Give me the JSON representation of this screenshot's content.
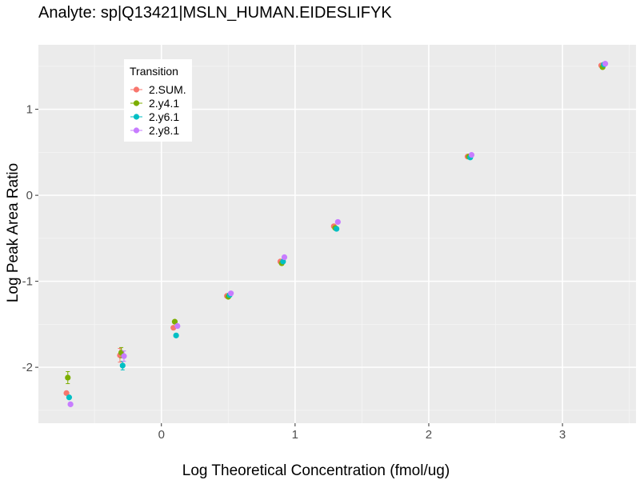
{
  "chart_data": {
    "type": "scatter",
    "title": "Analyte: sp|Q13421|MSLN_HUMAN.EIDESLIFYK",
    "xlabel": "Log Theoretical Concentration (fmol/ug)",
    "ylabel": "Log Peak Area Ratio",
    "xlim": [
      -0.92,
      3.55
    ],
    "ylim": [
      -2.65,
      1.75
    ],
    "x_ticks": [
      0,
      1,
      2,
      3
    ],
    "y_ticks": [
      -2,
      -1,
      0,
      1
    ],
    "x_tick_labels": [
      "0",
      "1",
      "2",
      "3"
    ],
    "y_tick_labels": [
      "-2",
      "-1",
      "0",
      "1"
    ],
    "grid": true,
    "legend": {
      "title": "Transition",
      "position": "top-left"
    },
    "series": [
      {
        "name": "2.SUM.",
        "color": "#F8766D",
        "x": [
          -0.71,
          -0.31,
          0.09,
          0.49,
          0.89,
          1.29,
          2.29,
          3.29
        ],
        "y": [
          -2.3,
          -1.86,
          -1.54,
          -1.17,
          -0.77,
          -0.36,
          0.45,
          1.51
        ],
        "err": [
          0,
          0.08,
          0,
          0,
          0,
          0,
          0,
          0
        ]
      },
      {
        "name": "2.y4.1",
        "color": "#7CAE00",
        "x": [
          -0.7,
          -0.3,
          0.1,
          0.5,
          0.9,
          1.3,
          2.3,
          3.3
        ],
        "y": [
          -2.12,
          -1.83,
          -1.47,
          -1.18,
          -0.79,
          -0.38,
          0.45,
          1.49
        ],
        "err": [
          0.07,
          0.06,
          0,
          0,
          0,
          0,
          0,
          0
        ]
      },
      {
        "name": "2.y6.1",
        "color": "#00BFC4",
        "x": [
          -0.69,
          -0.29,
          0.11,
          0.51,
          0.91,
          1.31,
          2.31,
          3.31
        ],
        "y": [
          -2.35,
          -1.98,
          -1.63,
          -1.16,
          -0.77,
          -0.39,
          0.44,
          1.52
        ],
        "err": [
          0,
          0.05,
          0,
          0,
          0,
          0,
          0,
          0
        ]
      },
      {
        "name": "2.y8.1",
        "color": "#C77CFF",
        "x": [
          -0.68,
          -0.28,
          0.12,
          0.52,
          0.92,
          1.32,
          2.32,
          3.32
        ],
        "y": [
          -2.43,
          -1.87,
          -1.52,
          -1.14,
          -0.72,
          -0.31,
          0.47,
          1.53
        ],
        "err": [
          0,
          0.06,
          0,
          0,
          0,
          0,
          0,
          0
        ]
      }
    ]
  }
}
